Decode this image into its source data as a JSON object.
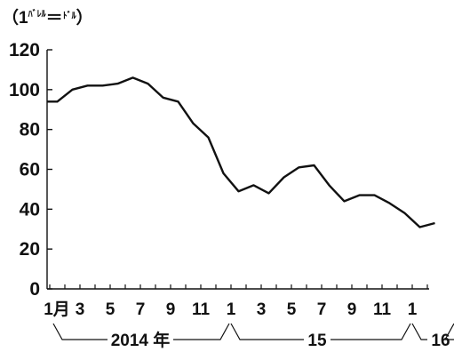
{
  "chart_data": {
    "type": "line",
    "unit": {
      "open": "（1",
      "sup": "ﾊﾞﾚﾙ",
      "eq": "＝",
      "sub": "ﾄﾞﾙ",
      "close": "）"
    },
    "ylim": [
      0,
      120
    ],
    "yticks": [
      "0",
      "20",
      "40",
      "60",
      "80",
      "100",
      "120"
    ],
    "xtick_labels": [
      "1月",
      "3",
      "5",
      "7",
      "9",
      "11",
      "1",
      "3",
      "5",
      "7",
      "9",
      "11",
      "1"
    ],
    "year_labels": [
      "2014 年",
      "15",
      "16"
    ],
    "grid": false,
    "x": [
      "2014-01",
      "2014-02",
      "2014-03",
      "2014-04",
      "2014-05",
      "2014-06",
      "2014-07",
      "2014-08",
      "2014-09",
      "2014-10",
      "2014-11",
      "2014-12",
      "2015-01",
      "2015-02",
      "2015-03",
      "2015-04",
      "2015-05",
      "2015-06",
      "2015-07",
      "2015-08",
      "2015-09",
      "2015-10",
      "2015-11",
      "2015-12",
      "2016-01",
      "2016-02"
    ],
    "series": [
      {
        "values": [
          94,
          100,
          102,
          102,
          103,
          106,
          103,
          96,
          94,
          83,
          76,
          58,
          49,
          52,
          48,
          56,
          61,
          62,
          52,
          44,
          47,
          47,
          43,
          38,
          31,
          33
        ]
      }
    ]
  }
}
